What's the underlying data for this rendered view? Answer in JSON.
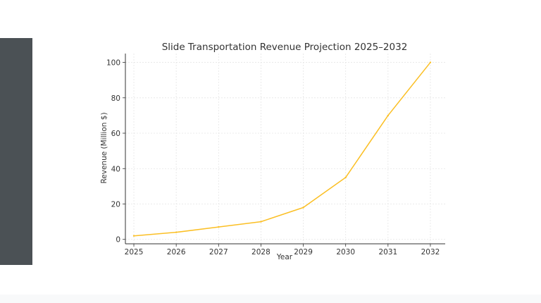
{
  "colors": {
    "line": "#fbbf24",
    "sidebar": "#4b5155",
    "grid": "#e5e5e5",
    "axis": "#333333"
  },
  "chart_data": {
    "type": "line",
    "title": "Slide Transportation Revenue Projection 2025–2032",
    "xlabel": "Year",
    "ylabel": "Revenue (Million $)",
    "x": [
      2025,
      2026,
      2027,
      2028,
      2029,
      2030,
      2031,
      2032
    ],
    "x_tick_labels": [
      "2025",
      "2026",
      "2027",
      "2028",
      "2029",
      "2030",
      "2031",
      "2032"
    ],
    "y_ticks": [
      0,
      20,
      40,
      60,
      80,
      100
    ],
    "y_tick_labels": [
      "0",
      "20",
      "40",
      "60",
      "80",
      "100"
    ],
    "ylim": [
      -2.5,
      105
    ],
    "xlim": [
      2024.8,
      2032.35
    ],
    "grid": true,
    "series": [
      {
        "values": [
          2,
          4,
          7,
          10,
          18,
          35,
          70,
          100
        ]
      }
    ]
  }
}
